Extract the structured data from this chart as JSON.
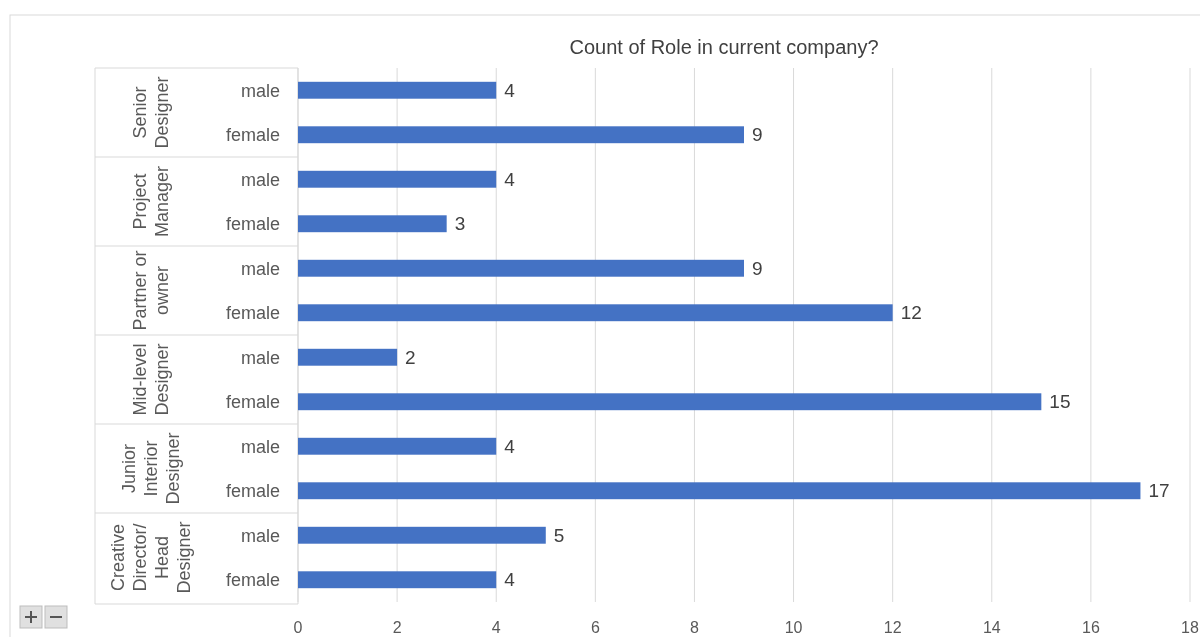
{
  "chart_data": {
    "type": "bar",
    "orientation": "horizontal",
    "title": "Count of Role in current company?",
    "categories": [
      "male",
      "female",
      "male",
      "female",
      "male",
      "female",
      "male",
      "female",
      "male",
      "female",
      "male",
      "female"
    ],
    "values": [
      4,
      9,
      4,
      3,
      9,
      12,
      2,
      15,
      4,
      17,
      5,
      4
    ],
    "color": "#4472c4",
    "annotations": [
      "Senior Designer",
      "Project Manager",
      "Partner or owner",
      "Mid-level Designer",
      "Junior Interior Designer",
      "Creative Director/ Head Designer"
    ],
    "xlim": [
      0,
      18
    ],
    "xticks": [
      0,
      2,
      4,
      6,
      8,
      10,
      12,
      14,
      16,
      18
    ],
    "grid": "x",
    "data_labels": true
  }
}
